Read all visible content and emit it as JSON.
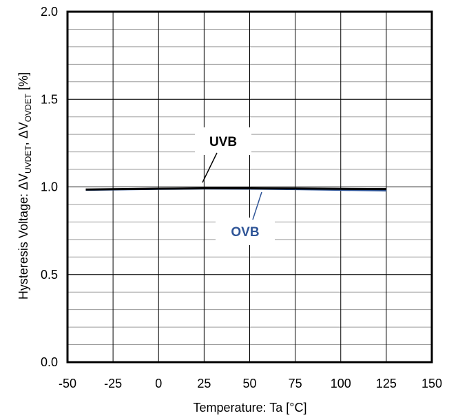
{
  "chart_data": {
    "type": "line",
    "title": "",
    "xlabel": "Temperature: Ta [°C]",
    "ylabel": {
      "prefix": "Hysteresis Voltage: ΔV",
      "sub1": "UVDET",
      "mid": ", ΔV",
      "sub2": "OVDET",
      "suffix": " [%]"
    },
    "xlim": [
      -50,
      150
    ],
    "ylim": [
      0.0,
      2.0
    ],
    "x_ticks": [
      -50,
      -25,
      0,
      25,
      50,
      75,
      100,
      125,
      150
    ],
    "x_tick_labels": [
      "-50",
      "-25",
      "0",
      "25",
      "50",
      "75",
      "100",
      "125",
      "150"
    ],
    "y_ticks": [
      0.0,
      0.5,
      1.0,
      1.5,
      2.0
    ],
    "y_tick_labels": [
      "0.0",
      "0.5",
      "1.0",
      "1.5",
      "2.0"
    ],
    "y_minor_step": 0.1,
    "grid": true,
    "series": [
      {
        "name": "UVB",
        "color": "#000000",
        "x": [
          -40,
          -25,
          0,
          25,
          50,
          75,
          100,
          125
        ],
        "y": [
          0.985,
          0.987,
          0.99,
          0.992,
          0.992,
          0.991,
          0.989,
          0.988
        ]
      },
      {
        "name": "OVB",
        "color": "#2f5597",
        "x": [
          -40,
          -25,
          0,
          25,
          50,
          75,
          100,
          125
        ],
        "y": [
          0.984,
          0.986,
          0.989,
          0.991,
          0.99,
          0.988,
          0.984,
          0.98
        ]
      }
    ],
    "annotations": [
      {
        "text": "UVB",
        "color": "#000000",
        "series": 0
      },
      {
        "text": "OVB",
        "color": "#2f5597",
        "series": 1
      }
    ]
  }
}
